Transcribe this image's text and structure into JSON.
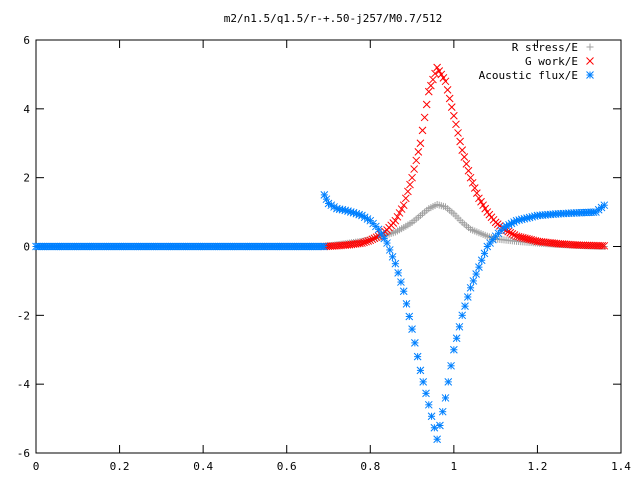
{
  "chart_data": {
    "type": "scatter",
    "title": "m2/n1.5/q1.5/r-+.50-j257/M0.7/512",
    "xlabel": "",
    "ylabel": "",
    "xlim": [
      0,
      1.4
    ],
    "ylim": [
      -6,
      6
    ],
    "x_ticks": [
      "0",
      "0.2",
      "0.4",
      "0.6",
      "0.8",
      "1",
      "1.2",
      "1.4"
    ],
    "y_ticks": [
      "6",
      "4",
      "2",
      "0",
      "-2",
      "-4",
      "-6"
    ],
    "grid": false,
    "legend_position": "top-right",
    "series": [
      {
        "name": "R stress/E",
        "marker": "plus",
        "color": "#a0a0a0",
        "points": [
          [
            0.69,
            0.0
          ],
          [
            0.72,
            0.05
          ],
          [
            0.75,
            0.1
          ],
          [
            0.78,
            0.15
          ],
          [
            0.8,
            0.2
          ],
          [
            0.83,
            0.3
          ],
          [
            0.86,
            0.42
          ],
          [
            0.88,
            0.55
          ],
          [
            0.9,
            0.7
          ],
          [
            0.92,
            0.9
          ],
          [
            0.94,
            1.1
          ],
          [
            0.96,
            1.22
          ],
          [
            0.98,
            1.15
          ],
          [
            1.0,
            0.95
          ],
          [
            1.02,
            0.7
          ],
          [
            1.04,
            0.5
          ],
          [
            1.06,
            0.4
          ],
          [
            1.08,
            0.3
          ],
          [
            1.1,
            0.22
          ],
          [
            1.15,
            0.15
          ],
          [
            1.2,
            0.1
          ],
          [
            1.25,
            0.06
          ],
          [
            1.3,
            0.03
          ],
          [
            1.36,
            0.0
          ]
        ]
      },
      {
        "name": "G work/E",
        "marker": "cross",
        "color": "#ff0000",
        "points": [
          [
            0.69,
            0.0
          ],
          [
            0.72,
            0.02
          ],
          [
            0.75,
            0.05
          ],
          [
            0.78,
            0.1
          ],
          [
            0.8,
            0.18
          ],
          [
            0.82,
            0.3
          ],
          [
            0.84,
            0.48
          ],
          [
            0.86,
            0.75
          ],
          [
            0.88,
            1.2
          ],
          [
            0.9,
            2.0
          ],
          [
            0.92,
            3.0
          ],
          [
            0.94,
            4.5
          ],
          [
            0.96,
            5.2
          ],
          [
            0.98,
            4.8
          ],
          [
            1.0,
            3.8
          ],
          [
            1.02,
            2.8
          ],
          [
            1.04,
            2.0
          ],
          [
            1.06,
            1.4
          ],
          [
            1.08,
            1.0
          ],
          [
            1.1,
            0.7
          ],
          [
            1.12,
            0.5
          ],
          [
            1.15,
            0.3
          ],
          [
            1.2,
            0.15
          ],
          [
            1.25,
            0.08
          ],
          [
            1.3,
            0.04
          ],
          [
            1.36,
            0.02
          ]
        ]
      },
      {
        "name": "Acoustic flux/E",
        "marker": "star",
        "color": "#0080ff",
        "points": [
          [
            0.69,
            1.5
          ],
          [
            0.7,
            1.25
          ],
          [
            0.72,
            1.1
          ],
          [
            0.74,
            1.05
          ],
          [
            0.76,
            0.98
          ],
          [
            0.78,
            0.9
          ],
          [
            0.8,
            0.75
          ],
          [
            0.82,
            0.5
          ],
          [
            0.84,
            0.1
          ],
          [
            0.86,
            -0.5
          ],
          [
            0.88,
            -1.3
          ],
          [
            0.9,
            -2.4
          ],
          [
            0.92,
            -3.6
          ],
          [
            0.94,
            -4.6
          ],
          [
            0.96,
            -5.6
          ],
          [
            0.98,
            -4.4
          ],
          [
            1.0,
            -3.0
          ],
          [
            1.02,
            -2.0
          ],
          [
            1.04,
            -1.2
          ],
          [
            1.06,
            -0.6
          ],
          [
            1.08,
            0.0
          ],
          [
            1.1,
            0.3
          ],
          [
            1.12,
            0.55
          ],
          [
            1.15,
            0.75
          ],
          [
            1.2,
            0.9
          ],
          [
            1.25,
            0.95
          ],
          [
            1.3,
            0.98
          ],
          [
            1.34,
            1.0
          ],
          [
            1.36,
            1.2
          ]
        ]
      }
    ]
  }
}
